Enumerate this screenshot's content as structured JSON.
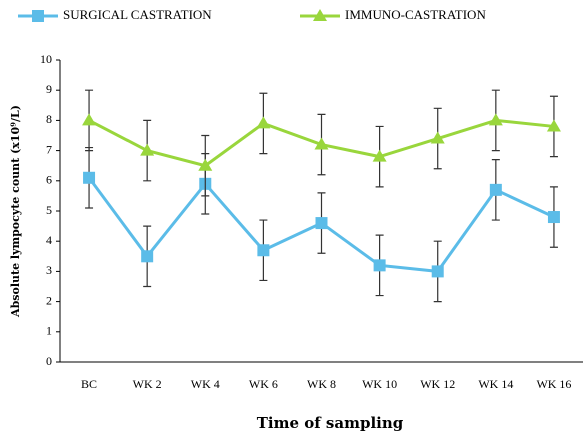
{
  "chart_data": {
    "type": "line",
    "x_label": "Time of sampling",
    "y_label": "Absolute lympocyte count (x10⁹/L)",
    "categories": [
      "BC",
      "WK 2",
      "WK 4",
      "WK 6",
      "WK 8",
      "WK 10",
      "WK 12",
      "WK 14",
      "WK 16"
    ],
    "series": [
      {
        "name": "SURGICAL CASTRATION",
        "color": "#5bbce8",
        "marker": "square",
        "values": [
          6.1,
          3.5,
          5.9,
          3.7,
          4.6,
          3.2,
          3.0,
          5.7,
          4.8
        ],
        "errors": [
          1.0,
          1.0,
          1.0,
          1.0,
          1.0,
          1.0,
          1.0,
          1.0,
          1.0
        ]
      },
      {
        "name": "IMMUNO-CASTRATION",
        "color": "#99d63c",
        "marker": "triangle",
        "values": [
          8.0,
          7.0,
          6.5,
          7.9,
          7.2,
          6.8,
          7.4,
          8.0,
          7.8
        ],
        "errors": [
          1.0,
          1.0,
          1.0,
          1.0,
          1.0,
          1.0,
          1.0,
          1.0,
          1.0
        ]
      }
    ],
    "ylim": [
      0,
      10
    ],
    "yticks": [
      0,
      1,
      2,
      3,
      4,
      5,
      6,
      7,
      8,
      9,
      10
    ],
    "grid": false
  }
}
